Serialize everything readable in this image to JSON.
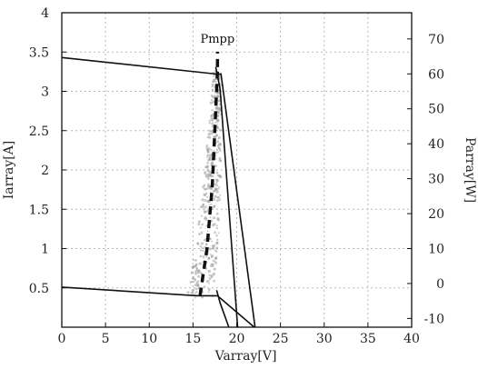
{
  "chart_data": {
    "type": "line",
    "title": "",
    "xlabel": "Varray[V]",
    "ylabel": "Iarray[A]",
    "y2label": "Parray[W]",
    "xlim": [
      0,
      40
    ],
    "ylim": [
      0,
      4
    ],
    "y2lim": [
      -12.5,
      77.5
    ],
    "grid": true,
    "x_ticks": [
      "0",
      "5",
      "10",
      "15",
      "20",
      "25",
      "30",
      "35",
      "40"
    ],
    "y_ticks": [
      {
        "v": 0.5,
        "label": "0.5"
      },
      {
        "v": 1,
        "label": "1"
      },
      {
        "v": 1.5,
        "label": "1.5"
      },
      {
        "v": 2,
        "label": "2"
      },
      {
        "v": 2.5,
        "label": "2.5"
      },
      {
        "v": 3,
        "label": "3"
      },
      {
        "v": 3.5,
        "label": "3.5"
      },
      {
        "v": 4,
        "label": "4"
      }
    ],
    "y2_ticks": [
      {
        "v": -10,
        "label": "-10"
      },
      {
        "v": 0,
        "label": "0"
      },
      {
        "v": 10,
        "label": "10"
      },
      {
        "v": 20,
        "label": "20"
      },
      {
        "v": 30,
        "label": "30"
      },
      {
        "v": 40,
        "label": "40"
      },
      {
        "v": 50,
        "label": "50"
      },
      {
        "v": 60,
        "label": "60"
      },
      {
        "v": 70,
        "label": "70"
      }
    ],
    "series": [
      {
        "axis": "left",
        "x": [
          0,
          15.5,
          17.8,
          22.0
        ],
        "y": [
          0.51,
          0.4,
          0.4,
          0.0
        ]
      },
      {
        "axis": "left",
        "x": [
          0,
          17.7,
          18.2,
          22.1
        ],
        "y": [
          3.43,
          3.22,
          3.22,
          0.0
        ]
      },
      {
        "axis": "left",
        "x": [
          17.7,
          18.1,
          19.1
        ],
        "y": [
          0.47,
          0.31,
          0.0
        ]
      },
      {
        "axis": "left",
        "x": [
          17.6,
          18.1,
          20.1
        ],
        "y": [
          3.31,
          3.03,
          0.0
        ]
      }
    ],
    "mpp_track": {
      "x": [
        15.8,
        16.6,
        17.2,
        17.5,
        17.8
      ],
      "y": [
        0.4,
        1.0,
        1.8,
        2.5,
        3.25
      ]
    },
    "annotations": [
      {
        "text": "Pmpp"
      }
    ]
  }
}
